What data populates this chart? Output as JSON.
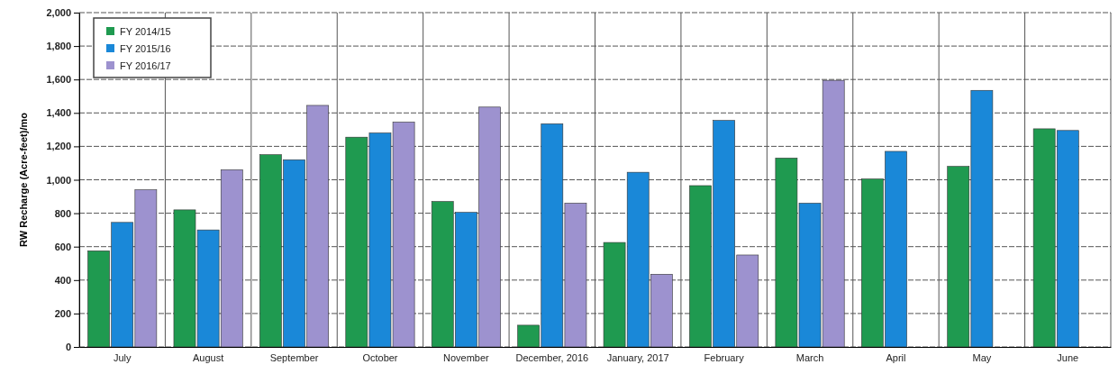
{
  "chart_data": {
    "type": "bar",
    "ylabel": "RW Recharge (Acre-feet)/mo",
    "categories": [
      "July",
      "August",
      "September",
      "October",
      "November",
      "December, 2016",
      "January, 2017",
      "February",
      "March",
      "April",
      "May",
      "June"
    ],
    "series": [
      {
        "name": "FY 2014/15",
        "color": "#1f9a50",
        "values": [
          575,
          820,
          1150,
          1255,
          870,
          130,
          625,
          965,
          1130,
          1005,
          1080,
          1305
        ]
      },
      {
        "name": "FY 2015/16",
        "color": "#1a88d8",
        "values": [
          745,
          700,
          1120,
          1280,
          805,
          1335,
          1045,
          1355,
          860,
          1170,
          1535,
          1295
        ]
      },
      {
        "name": "FY 2016/17",
        "color": "#9d92cf",
        "values": [
          940,
          1060,
          1445,
          1345,
          1435,
          860,
          435,
          550,
          1595,
          null,
          null,
          null
        ]
      }
    ],
    "ylim": [
      0,
      2000
    ],
    "yticks": [
      0,
      {
        "value": 200,
        "label": "200"
      },
      {
        "value": 400,
        "label": "400"
      },
      {
        "value": 600,
        "label": "600"
      },
      {
        "value": 800,
        "label": "800"
      },
      {
        "value": 1000,
        "label": "1,000"
      },
      {
        "value": 1200,
        "label": "1,200"
      },
      {
        "value": 1400,
        "label": "1,400"
      },
      {
        "value": 1600,
        "label": "1,600"
      },
      {
        "value": 1800,
        "label": "1,800"
      },
      {
        "value": 2000,
        "label": "2,000"
      }
    ],
    "grid": true,
    "legend": "top left"
  }
}
